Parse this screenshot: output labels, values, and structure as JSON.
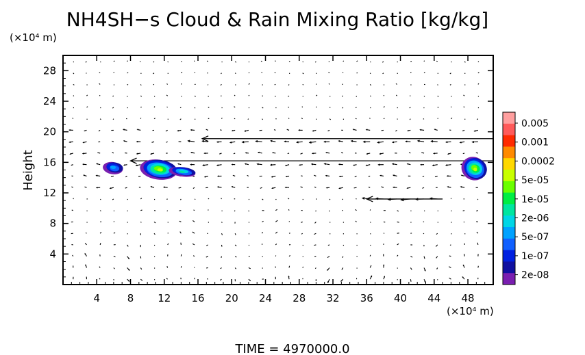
{
  "chart_data": {
    "type": "heatmap",
    "title": "NH4SH−s Cloud & Rain Mixing Ratio [kg/kg]",
    "ylabel": "Height",
    "y_unit_label": "(×10⁴ m)",
    "x_unit_label": "(×10⁴ m)",
    "xlim": [
      0,
      51
    ],
    "ylim": [
      0,
      30
    ],
    "x_ticks": [
      4,
      8,
      12,
      16,
      20,
      24,
      28,
      32,
      36,
      40,
      44,
      48
    ],
    "y_ticks": [
      4,
      8,
      12,
      16,
      20,
      24,
      28
    ],
    "grid": false,
    "time_label": "TIME  =  4970000.0",
    "colorbar": {
      "labels": [
        "0.005",
        "0.001",
        "0.0002",
        "5e-05",
        "1e-05",
        "2e-06",
        "5e-07",
        "1e-07",
        "2e-08"
      ],
      "colors": [
        "#ff9f9f",
        "#ff5a5a",
        "#ff2a00",
        "#ff8a00",
        "#ffd800",
        "#c8ff00",
        "#6aff00",
        "#00ee44",
        "#00e6a0",
        "#00d6e6",
        "#00a2ff",
        "#1060ff",
        "#0020e0",
        "#1010a0",
        "#7a1fb0"
      ]
    },
    "cloud_patches": [
      {
        "x": 6.0,
        "y": 15.3,
        "rx": 1.2,
        "ry": 0.8,
        "peak": "5e-07"
      },
      {
        "x": 11.4,
        "y": 15.1,
        "rx": 2.2,
        "ry": 1.3,
        "peak": "1e-05"
      },
      {
        "x": 14.2,
        "y": 14.8,
        "rx": 1.6,
        "ry": 0.6,
        "peak": "2e-06"
      },
      {
        "x": 48.8,
        "y": 15.2,
        "rx": 1.5,
        "ry": 1.5,
        "peak": "1e-05"
      }
    ],
    "wind_jets": [
      {
        "y": 19.1,
        "x_from": 16.5,
        "x_to": 51,
        "direction": "westward"
      },
      {
        "y": 16.2,
        "x_from": 8,
        "x_to": 51,
        "direction": "westward"
      },
      {
        "y": 11.2,
        "x_from": 36,
        "x_to": 45,
        "direction": "westward"
      }
    ]
  }
}
